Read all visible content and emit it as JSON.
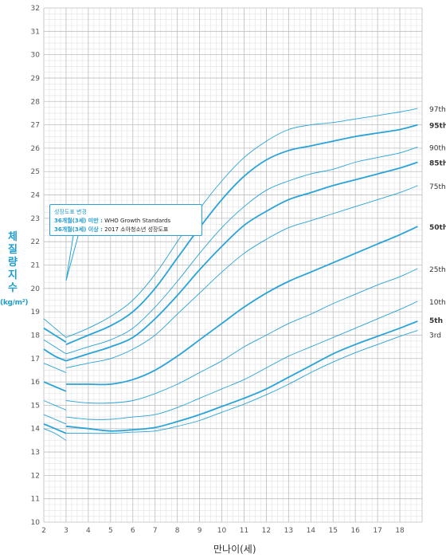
{
  "chart_data": {
    "type": "line",
    "xlabel": "만나이(세)",
    "ylabel": "체질량지수",
    "yunit": "(kg/m²)",
    "xlim": [
      2,
      19
    ],
    "ylim": [
      10,
      32
    ],
    "x_ticks": [
      2,
      3,
      4,
      5,
      6,
      7,
      8,
      9,
      10,
      11,
      12,
      13,
      14,
      15,
      16,
      17,
      18
    ],
    "y_ticks": [
      10,
      11,
      12,
      13,
      14,
      15,
      16,
      17,
      18,
      19,
      20,
      21,
      22,
      23,
      24,
      25,
      26,
      27,
      28,
      29,
      30,
      31,
      32
    ],
    "grid": true,
    "annotation": {
      "title": "성장도표 변경",
      "line1_bold": "36개월(3세) 미만 :",
      "line1_rest": " WHO Growth Standards",
      "line2_bold": "36개월(3세) 이상 :",
      "line2_rest": " 2017 소아청소년 성장도표"
    },
    "colors": {
      "line": "#29a3d8",
      "grid_major": "#bdbdbd",
      "grid_minor": "#e2e2e2",
      "accent": "#1f9ccf"
    },
    "who_segment": {
      "x": [
        2,
        2.5,
        3
      ],
      "series": [
        {
          "name": "97th",
          "values": [
            18.7,
            18.3,
            17.9
          ]
        },
        {
          "name": "95th",
          "values": [
            18.3,
            18.0,
            17.7
          ]
        },
        {
          "name": "90th",
          "values": [
            17.8,
            17.5,
            17.2
          ]
        },
        {
          "name": "85th",
          "values": [
            17.4,
            17.1,
            16.9
          ]
        },
        {
          "name": "75th",
          "values": [
            16.8,
            16.6,
            16.4
          ]
        },
        {
          "name": "50th",
          "values": [
            16.0,
            15.8,
            15.6
          ]
        },
        {
          "name": "25th",
          "values": [
            15.2,
            15.0,
            14.8
          ]
        },
        {
          "name": "10th",
          "values": [
            14.6,
            14.4,
            14.2
          ]
        },
        {
          "name": "5th",
          "values": [
            14.2,
            14.0,
            13.8
          ]
        },
        {
          "name": "3rd",
          "values": [
            14.0,
            13.8,
            13.5
          ]
        }
      ]
    },
    "x": [
      3,
      4,
      5,
      6,
      7,
      8,
      9,
      10,
      11,
      12,
      13,
      14,
      15,
      16,
      17,
      18,
      18.8
    ],
    "series": [
      {
        "name": "97th",
        "bold": false,
        "values": [
          17.9,
          18.3,
          18.8,
          19.5,
          20.6,
          22.0,
          23.4,
          24.6,
          25.6,
          26.3,
          26.8,
          27.0,
          27.1,
          27.25,
          27.4,
          27.55,
          27.7
        ]
      },
      {
        "name": "95th",
        "bold": true,
        "values": [
          17.6,
          18.0,
          18.4,
          19.0,
          20.0,
          21.3,
          22.6,
          23.8,
          24.8,
          25.5,
          25.9,
          26.1,
          26.3,
          26.5,
          26.65,
          26.8,
          27.0
        ]
      },
      {
        "name": "90th",
        "bold": false,
        "values": [
          17.2,
          17.5,
          17.8,
          18.3,
          19.2,
          20.3,
          21.5,
          22.6,
          23.5,
          24.2,
          24.6,
          24.9,
          25.1,
          25.4,
          25.6,
          25.8,
          26.05
        ]
      },
      {
        "name": "85th",
        "bold": true,
        "values": [
          16.9,
          17.2,
          17.5,
          17.9,
          18.7,
          19.7,
          20.8,
          21.8,
          22.7,
          23.3,
          23.8,
          24.1,
          24.4,
          24.65,
          24.9,
          25.15,
          25.4
        ]
      },
      {
        "name": "75th",
        "bold": false,
        "values": [
          16.6,
          16.8,
          17.0,
          17.4,
          18.0,
          18.9,
          19.8,
          20.7,
          21.5,
          22.1,
          22.6,
          22.9,
          23.2,
          23.5,
          23.8,
          24.1,
          24.4
        ]
      },
      {
        "name": "50th",
        "bold": true,
        "values": [
          15.9,
          15.9,
          15.9,
          16.1,
          16.5,
          17.1,
          17.8,
          18.5,
          19.2,
          19.8,
          20.3,
          20.7,
          21.1,
          21.5,
          21.9,
          22.3,
          22.65
        ]
      },
      {
        "name": "25th",
        "bold": false,
        "values": [
          15.2,
          15.1,
          15.1,
          15.2,
          15.5,
          15.9,
          16.4,
          16.9,
          17.5,
          18.0,
          18.5,
          18.9,
          19.35,
          19.75,
          20.15,
          20.5,
          20.85
        ]
      },
      {
        "name": "10th",
        "bold": false,
        "values": [
          14.5,
          14.4,
          14.4,
          14.5,
          14.6,
          14.9,
          15.3,
          15.7,
          16.1,
          16.6,
          17.1,
          17.5,
          17.9,
          18.3,
          18.7,
          19.1,
          19.45
        ]
      },
      {
        "name": "5th",
        "bold": true,
        "values": [
          14.1,
          14.0,
          13.9,
          13.95,
          14.05,
          14.3,
          14.6,
          14.95,
          15.3,
          15.7,
          16.2,
          16.7,
          17.2,
          17.6,
          17.95,
          18.3,
          18.6
        ]
      },
      {
        "name": "3rd",
        "bold": false,
        "values": [
          13.8,
          13.8,
          13.8,
          13.85,
          13.9,
          14.1,
          14.35,
          14.7,
          15.05,
          15.45,
          15.9,
          16.4,
          16.85,
          17.25,
          17.6,
          17.95,
          18.2
        ]
      }
    ]
  }
}
